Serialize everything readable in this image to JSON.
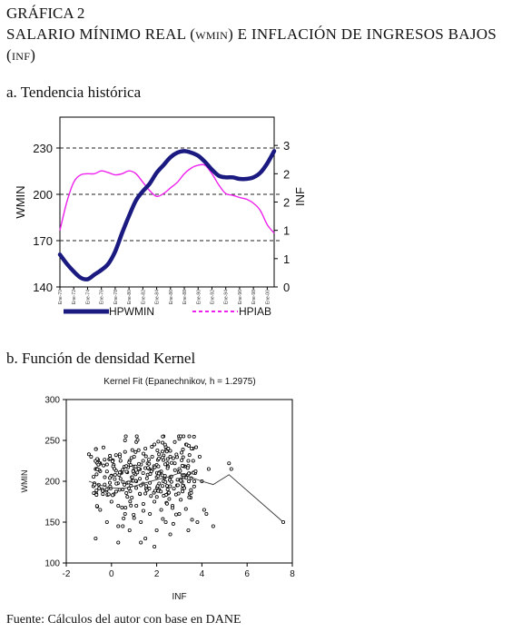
{
  "figure": {
    "label": "GRÁFICA 2",
    "title_parts": [
      "SALARIO MÍNIMO REAL (",
      "WMIN",
      ") E INFLACIÓN DE INGRESOS BAJOS (",
      "INF",
      ")"
    ]
  },
  "section_a": {
    "heading": "a. Tendencia histórica"
  },
  "section_b": {
    "heading": "b. Función de densidad Kernel"
  },
  "source": "Fuente: Cálculos del autor con base en DANE",
  "chart_data": [
    {
      "type": "line",
      "title": "",
      "ylabel": "WMIN",
      "y2label": "INF",
      "ylim": [
        140,
        250
      ],
      "y2lim": [
        0,
        3
      ],
      "yticks": [
        140,
        170,
        200,
        230
      ],
      "y2ticks": [
        "0",
        "1",
        "1",
        "2",
        "2",
        "3"
      ],
      "y2tick_values": [
        0,
        0.5,
        1,
        1.5,
        2,
        2.5
      ],
      "dashed_gridlines_at": [
        170,
        200,
        230
      ],
      "x_tick_labels": [
        "Ene-70",
        "Ene-72",
        "Ene-74",
        "Ene-76",
        "Ene-78",
        "Ene-80",
        "Ene-82",
        "Ene-84",
        "Ene-86",
        "Ene-88",
        "Ene-90",
        "Ene-92",
        "Ene-94",
        "Ene-96",
        "Ene-98",
        "Ene-00"
      ],
      "legend_position": "bottom",
      "series": [
        {
          "name": "HPWMIN",
          "color": "#1a1a80",
          "axis": "left",
          "line_style": "solid-thick",
          "x": [
            1970,
            1971,
            1972,
            1973,
            1974,
            1975,
            1976,
            1977,
            1978,
            1979,
            1980,
            1981,
            1982,
            1983,
            1984,
            1985,
            1986,
            1987,
            1988,
            1989,
            1990,
            1991,
            1992,
            1993,
            1994,
            1995,
            1996,
            1997,
            1998,
            1999,
            2000,
            2001
          ],
          "values": [
            161,
            155,
            150,
            146,
            145,
            148,
            151,
            155,
            163,
            175,
            186,
            196,
            202,
            207,
            214,
            219,
            224,
            227,
            228,
            227,
            225,
            221,
            216,
            212,
            211,
            211,
            210,
            210,
            211,
            214,
            220,
            228
          ]
        },
        {
          "name": "HPIAB",
          "color": "#ee22ee",
          "axis": "right",
          "line_style": "solid",
          "legend_line_style": "dashed",
          "x": [
            1970,
            1971,
            1972,
            1973,
            1974,
            1975,
            1976,
            1977,
            1978,
            1979,
            1980,
            1981,
            1982,
            1983,
            1984,
            1985,
            1986,
            1987,
            1988,
            1989,
            1990,
            1991,
            1992,
            1993,
            1994,
            1995,
            1996,
            1997,
            1998,
            1999,
            2000,
            2001
          ],
          "values": [
            1.0,
            1.5,
            1.85,
            1.98,
            2.0,
            2.0,
            2.05,
            2.02,
            1.98,
            2.0,
            2.05,
            2.0,
            1.85,
            1.7,
            1.6,
            1.65,
            1.75,
            1.85,
            2.0,
            2.1,
            2.15,
            2.15,
            2.0,
            1.8,
            1.65,
            1.62,
            1.58,
            1.55,
            1.48,
            1.35,
            1.1,
            0.95
          ]
        }
      ]
    },
    {
      "type": "scatter",
      "title": "Kernel Fit (Epanechnikov, h = 1.2975)",
      "xlabel": "INF",
      "ylabel": "WMIN",
      "xlim": [
        -2,
        8
      ],
      "ylim": [
        100,
        300
      ],
      "xticks": [
        -2,
        0,
        2,
        4,
        6,
        8
      ],
      "yticks": [
        100,
        150,
        200,
        250,
        300
      ],
      "grid": false,
      "points_description": "approx. 340 hollow circular markers, densest around INF 0-3 and WMIN 190-230",
      "points": [
        [
          -1,
          233
        ],
        [
          -0.9,
          230
        ],
        [
          -0.7,
          215
        ],
        [
          -0.5,
          222
        ],
        [
          -0.5,
          165
        ],
        [
          -0.3,
          196
        ],
        [
          -0.2,
          212
        ],
        [
          -0.2,
          150
        ],
        [
          -0.1,
          227
        ],
        [
          0,
          207
        ],
        [
          0.1,
          220
        ],
        [
          0.1,
          184
        ],
        [
          0.2,
          232
        ],
        [
          0.2,
          213
        ],
        [
          0.3,
          170
        ],
        [
          0.3,
          145
        ],
        [
          0.4,
          203
        ],
        [
          0.4,
          225
        ],
        [
          0.5,
          190
        ],
        [
          0.5,
          214
        ],
        [
          0.6,
          160
        ],
        [
          0.6,
          236
        ],
        [
          0.7,
          211
        ],
        [
          0.7,
          198
        ],
        [
          0.8,
          225
        ],
        [
          0.8,
          140
        ],
        [
          0.9,
          205
        ],
        [
          0.9,
          180
        ],
        [
          1,
          218
        ],
        [
          1,
          230
        ],
        [
          1,
          155
        ],
        [
          1.1,
          200
        ],
        [
          1.1,
          170
        ],
        [
          1.2,
          215
        ],
        [
          1.2,
          238
        ],
        [
          1.3,
          195
        ],
        [
          1.3,
          150
        ],
        [
          1.4,
          225
        ],
        [
          1.4,
          210
        ],
        [
          1.5,
          185
        ],
        [
          1.5,
          240
        ],
        [
          1.5,
          130
        ],
        [
          1.6,
          208
        ],
        [
          1.6,
          222
        ],
        [
          1.7,
          160
        ],
        [
          1.7,
          198
        ],
        [
          1.8,
          230
        ],
        [
          1.8,
          214
        ],
        [
          1.9,
          175
        ],
        [
          1.9,
          245
        ],
        [
          2,
          205
        ],
        [
          2,
          220
        ],
        [
          2,
          140
        ],
        [
          2.1,
          190
        ],
        [
          2.1,
          233
        ],
        [
          2.2,
          212
        ],
        [
          2.2,
          165
        ],
        [
          2.3,
          226
        ],
        [
          2.3,
          200
        ],
        [
          2.4,
          242
        ],
        [
          2.4,
          150
        ],
        [
          2.5,
          218
        ],
        [
          2.5,
          185
        ],
        [
          2.6,
          230
        ],
        [
          2.6,
          205
        ],
        [
          2.7,
          170
        ],
        [
          2.8,
          248
        ],
        [
          2.8,
          222
        ],
        [
          2.9,
          195
        ],
        [
          3,
          252
        ],
        [
          3,
          215
        ],
        [
          3,
          160
        ],
        [
          3.1,
          235
        ],
        [
          3.2,
          205
        ],
        [
          3.3,
          245
        ],
        [
          3.4,
          225
        ],
        [
          3.5,
          180
        ],
        [
          3.6,
          240
        ],
        [
          3.7,
          210
        ],
        [
          3.8,
          150
        ],
        [
          3.9,
          230
        ],
        [
          4,
          200
        ],
        [
          4.1,
          165
        ],
        [
          4.3,
          215
        ],
        [
          4.5,
          145
        ],
        [
          5.2,
          222
        ],
        [
          5.3,
          215
        ],
        [
          0.5,
          145
        ],
        [
          1.3,
          125
        ],
        [
          -0.7,
          130
        ],
        [
          -0.4,
          190
        ],
        [
          0,
          175
        ],
        [
          0.6,
          250
        ],
        [
          1.9,
          120
        ],
        [
          2.6,
          135
        ],
        [
          3.4,
          140
        ],
        [
          4.2,
          160
        ],
        [
          1.1,
          248
        ],
        [
          2.3,
          255
        ],
        [
          0.3,
          125
        ]
      ],
      "kernel_fit_line": {
        "x": [
          -1,
          -0.5,
          0,
          0.5,
          1,
          1.5,
          2,
          2.5,
          3,
          3.5,
          4,
          4.5,
          5.2,
          7.6
        ],
        "y": [
          200,
          195,
          192,
          191,
          194,
          198,
          202,
          205,
          210,
          205,
          200,
          196,
          208,
          150
        ]
      }
    }
  ]
}
